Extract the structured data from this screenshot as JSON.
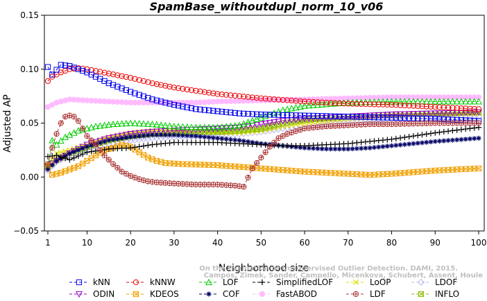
{
  "chart_data": {
    "type": "line",
    "title": "SpamBase_withoutdupl_norm_10_v06",
    "xlabel": "Neighborhood size",
    "ylabel": "Adjusted AP",
    "xlim": [
      1,
      100
    ],
    "ylim": [
      -0.05,
      0.15
    ],
    "xticks": [
      1,
      10,
      20,
      30,
      40,
      50,
      60,
      70,
      80,
      90,
      100
    ],
    "yticks": [
      -0.05,
      0.0,
      0.05,
      0.1,
      0.15
    ],
    "ytick_labels": [
      "−0.05",
      "0.00",
      "0.05",
      "0.10",
      "0.15"
    ],
    "legend_position": "bottom",
    "watermark_lines": [
      "Campos, Zimek, Sander, Campello, Micenkova, Schubert, Assent, Houle",
      "On the Evaluation of Unsupervised Outlier Detection. DAMI, 2015."
    ],
    "series": [
      {
        "name": "kNN",
        "color": "#0000ee",
        "marker": "square",
        "points": [
          [
            1,
            0.102
          ],
          [
            2,
            0.095
          ],
          [
            4,
            0.104
          ],
          [
            6,
            0.103
          ],
          [
            8,
            0.1
          ],
          [
            10,
            0.097
          ],
          [
            15,
            0.087
          ],
          [
            20,
            0.079
          ],
          [
            25,
            0.072
          ],
          [
            30,
            0.067
          ],
          [
            35,
            0.063
          ],
          [
            40,
            0.061
          ],
          [
            45,
            0.059
          ],
          [
            50,
            0.058
          ],
          [
            60,
            0.057
          ],
          [
            70,
            0.056
          ],
          [
            80,
            0.055
          ],
          [
            90,
            0.054
          ],
          [
            100,
            0.052
          ]
        ]
      },
      {
        "name": "kNNW",
        "color": "#ee0000",
        "marker": "circle",
        "points": [
          [
            1,
            0.089
          ],
          [
            2,
            0.093
          ],
          [
            4,
            0.097
          ],
          [
            6,
            0.1
          ],
          [
            8,
            0.101
          ],
          [
            10,
            0.1
          ],
          [
            15,
            0.096
          ],
          [
            20,
            0.092
          ],
          [
            25,
            0.087
          ],
          [
            30,
            0.083
          ],
          [
            35,
            0.08
          ],
          [
            40,
            0.077
          ],
          [
            45,
            0.075
          ],
          [
            50,
            0.073
          ],
          [
            60,
            0.07
          ],
          [
            70,
            0.068
          ],
          [
            80,
            0.067
          ],
          [
            90,
            0.065
          ],
          [
            100,
            0.063
          ]
        ]
      },
      {
        "name": "LOF",
        "color": "#00cc00",
        "marker": "triangle-up",
        "points": [
          [
            1,
            0.01
          ],
          [
            2,
            0.034
          ],
          [
            3,
            0.03
          ],
          [
            5,
            0.037
          ],
          [
            8,
            0.043
          ],
          [
            12,
            0.047
          ],
          [
            16,
            0.049
          ],
          [
            20,
            0.05
          ],
          [
            25,
            0.049
          ],
          [
            30,
            0.047
          ],
          [
            35,
            0.046
          ],
          [
            40,
            0.046
          ],
          [
            45,
            0.048
          ],
          [
            50,
            0.055
          ],
          [
            55,
            0.062
          ],
          [
            60,
            0.066
          ],
          [
            70,
            0.069
          ],
          [
            80,
            0.07
          ],
          [
            90,
            0.07
          ],
          [
            100,
            0.07
          ]
        ]
      },
      {
        "name": "SimplifiedLOF",
        "color": "#000000",
        "marker": "plus",
        "points": [
          [
            1,
            0.019
          ],
          [
            3,
            0.02
          ],
          [
            6,
            0.016
          ],
          [
            10,
            0.023
          ],
          [
            15,
            0.026
          ],
          [
            20,
            0.027
          ],
          [
            25,
            0.03
          ],
          [
            30,
            0.032
          ],
          [
            35,
            0.032
          ],
          [
            40,
            0.032
          ],
          [
            45,
            0.031
          ],
          [
            50,
            0.03
          ],
          [
            55,
            0.029
          ],
          [
            60,
            0.029
          ],
          [
            70,
            0.031
          ],
          [
            80,
            0.035
          ],
          [
            90,
            0.041
          ],
          [
            100,
            0.046
          ]
        ]
      },
      {
        "name": "LoOP",
        "color": "#dddd00",
        "marker": "x",
        "points": [
          [
            1,
            0.012
          ],
          [
            3,
            0.022
          ],
          [
            6,
            0.025
          ],
          [
            10,
            0.03
          ],
          [
            15,
            0.037
          ],
          [
            20,
            0.041
          ],
          [
            25,
            0.043
          ],
          [
            30,
            0.043
          ],
          [
            35,
            0.042
          ],
          [
            40,
            0.041
          ],
          [
            45,
            0.041
          ],
          [
            50,
            0.043
          ],
          [
            55,
            0.047
          ],
          [
            60,
            0.05
          ],
          [
            70,
            0.054
          ],
          [
            80,
            0.057
          ],
          [
            90,
            0.058
          ],
          [
            100,
            0.059
          ]
        ]
      },
      {
        "name": "LDOF",
        "color": "#b8b8ee",
        "marker": "diamond",
        "points": [
          [
            1,
            0.006
          ],
          [
            3,
            0.014
          ],
          [
            6,
            0.02
          ],
          [
            10,
            0.026
          ],
          [
            15,
            0.031
          ],
          [
            20,
            0.034
          ],
          [
            25,
            0.036
          ],
          [
            30,
            0.037
          ],
          [
            35,
            0.038
          ],
          [
            40,
            0.039
          ],
          [
            45,
            0.04
          ],
          [
            50,
            0.042
          ],
          [
            55,
            0.045
          ],
          [
            60,
            0.047
          ],
          [
            70,
            0.05
          ],
          [
            80,
            0.053
          ],
          [
            90,
            0.055
          ],
          [
            100,
            0.056
          ]
        ]
      },
      {
        "name": "ODIN",
        "color": "#9900cc",
        "marker": "triangle-down",
        "points": [
          [
            1,
            0.01
          ],
          [
            3,
            0.015
          ],
          [
            6,
            0.022
          ],
          [
            10,
            0.03
          ],
          [
            15,
            0.036
          ],
          [
            20,
            0.04
          ],
          [
            25,
            0.042
          ],
          [
            30,
            0.043
          ],
          [
            35,
            0.044
          ],
          [
            40,
            0.045
          ],
          [
            45,
            0.046
          ],
          [
            50,
            0.049
          ],
          [
            55,
            0.052
          ],
          [
            60,
            0.054
          ],
          [
            70,
            0.056
          ],
          [
            80,
            0.058
          ],
          [
            90,
            0.059
          ],
          [
            100,
            0.06
          ]
        ]
      },
      {
        "name": "KDEOS",
        "color": "#f0a000",
        "marker": "square-x",
        "points": [
          [
            1,
            0.01
          ],
          [
            2,
            0.002
          ],
          [
            4,
            0.004
          ],
          [
            6,
            0.007
          ],
          [
            8,
            0.01
          ],
          [
            10,
            0.015
          ],
          [
            12,
            0.02
          ],
          [
            14,
            0.025
          ],
          [
            16,
            0.027
          ],
          [
            18,
            0.03
          ],
          [
            20,
            0.028
          ],
          [
            22,
            0.023
          ],
          [
            24,
            0.018
          ],
          [
            26,
            0.015
          ],
          [
            28,
            0.013
          ],
          [
            32,
            0.012
          ],
          [
            40,
            0.011
          ],
          [
            50,
            0.008
          ],
          [
            60,
            0.005
          ],
          [
            70,
            0.003
          ],
          [
            75,
            0.002
          ],
          [
            80,
            0.003
          ],
          [
            90,
            0.006
          ],
          [
            100,
            0.008
          ]
        ]
      },
      {
        "name": "COF",
        "color": "#000066",
        "marker": "asterisk",
        "points": [
          [
            1,
            0.007
          ],
          [
            3,
            0.015
          ],
          [
            6,
            0.022
          ],
          [
            10,
            0.028
          ],
          [
            15,
            0.034
          ],
          [
            20,
            0.037
          ],
          [
            25,
            0.039
          ],
          [
            30,
            0.039
          ],
          [
            35,
            0.038
          ],
          [
            40,
            0.036
          ],
          [
            45,
            0.034
          ],
          [
            50,
            0.031
          ],
          [
            55,
            0.029
          ],
          [
            60,
            0.027
          ],
          [
            65,
            0.026
          ],
          [
            70,
            0.026
          ],
          [
            75,
            0.027
          ],
          [
            80,
            0.029
          ],
          [
            90,
            0.033
          ],
          [
            100,
            0.036
          ]
        ]
      },
      {
        "name": "FastABOD",
        "color": "#ffbbff",
        "marker": "circle-filled",
        "points": [
          [
            1,
            0.065
          ],
          [
            3,
            0.069
          ],
          [
            6,
            0.072
          ],
          [
            10,
            0.071
          ],
          [
            15,
            0.07
          ],
          [
            20,
            0.069
          ],
          [
            25,
            0.069
          ],
          [
            30,
            0.069
          ],
          [
            35,
            0.069
          ],
          [
            40,
            0.07
          ],
          [
            50,
            0.071
          ],
          [
            60,
            0.072
          ],
          [
            70,
            0.073
          ],
          [
            80,
            0.074
          ],
          [
            90,
            0.074
          ],
          [
            100,
            0.074
          ]
        ]
      },
      {
        "name": "LDF",
        "color": "#aa3333",
        "marker": "circle-plus",
        "points": [
          [
            1,
            0.012
          ],
          [
            2,
            0.027
          ],
          [
            3,
            0.04
          ],
          [
            4,
            0.05
          ],
          [
            5,
            0.056
          ],
          [
            6,
            0.057
          ],
          [
            7,
            0.056
          ],
          [
            8,
            0.052
          ],
          [
            9,
            0.045
          ],
          [
            10,
            0.038
          ],
          [
            12,
            0.03
          ],
          [
            14,
            0.02
          ],
          [
            16,
            0.012
          ],
          [
            18,
            0.005
          ],
          [
            20,
            0.001
          ],
          [
            22,
            -0.002
          ],
          [
            24,
            -0.004
          ],
          [
            26,
            -0.005
          ],
          [
            30,
            -0.006
          ],
          [
            35,
            -0.007
          ],
          [
            40,
            -0.007
          ],
          [
            44,
            -0.008
          ],
          [
            46,
            -0.009
          ],
          [
            48,
            0.008
          ],
          [
            50,
            0.018
          ],
          [
            52,
            0.028
          ],
          [
            54,
            0.036
          ],
          [
            56,
            0.04
          ],
          [
            60,
            0.045
          ],
          [
            65,
            0.047
          ],
          [
            70,
            0.048
          ],
          [
            75,
            0.049
          ],
          [
            80,
            0.049
          ],
          [
            90,
            0.05
          ],
          [
            100,
            0.05
          ]
        ]
      },
      {
        "name": "INFLO",
        "color": "#88bb00",
        "marker": "square-x",
        "points": [
          [
            1,
            0.01
          ],
          [
            3,
            0.016
          ],
          [
            6,
            0.022
          ],
          [
            10,
            0.028
          ],
          [
            15,
            0.034
          ],
          [
            20,
            0.038
          ],
          [
            25,
            0.04
          ],
          [
            30,
            0.041
          ],
          [
            35,
            0.042
          ],
          [
            40,
            0.042
          ],
          [
            45,
            0.043
          ],
          [
            50,
            0.045
          ],
          [
            55,
            0.05
          ],
          [
            60,
            0.053
          ],
          [
            70,
            0.056
          ],
          [
            80,
            0.058
          ],
          [
            90,
            0.059
          ],
          [
            100,
            0.06
          ]
        ]
      }
    ]
  }
}
